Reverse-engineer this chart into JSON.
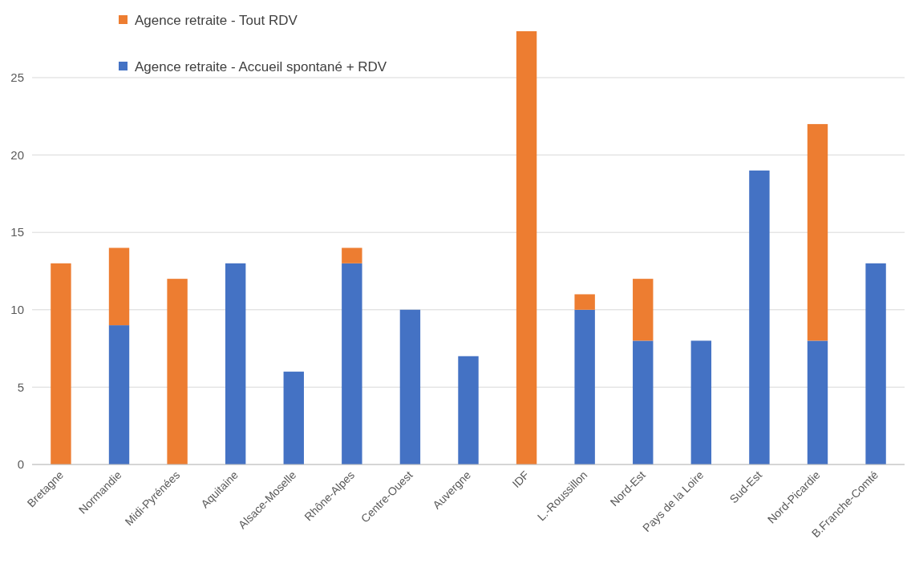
{
  "chart_data": {
    "type": "bar",
    "stacked": true,
    "categories": [
      "Bretagne",
      "Normandie",
      "Midi-Pyrénées",
      "Aquitaine",
      "Alsace-Moselle",
      "Rhône-Alpes",
      "Centre-Ouest",
      "Auvergne",
      "IDF",
      "L.-Roussillon",
      "Nord-Est",
      "Pays de la Loire",
      "Sud-Est",
      "Nord-Picardie",
      "B.Franche-Comté"
    ],
    "series": [
      {
        "name": "Agence retraite - Accueil spontané + RDV",
        "color": "#4472c4",
        "values": [
          null,
          9,
          null,
          13,
          6,
          13,
          10,
          7,
          null,
          10,
          8,
          8,
          19,
          8,
          13
        ]
      },
      {
        "name": "Agence retraite - Tout RDV",
        "color": "#ed7d31",
        "values": [
          13,
          5,
          12,
          null,
          null,
          1,
          null,
          null,
          28,
          1,
          4,
          null,
          null,
          14,
          null
        ]
      }
    ],
    "ylim": [
      0,
      28
    ],
    "yticks": [
      0,
      5,
      10,
      15,
      20,
      25
    ],
    "grid": "y",
    "legend": "top left"
  }
}
